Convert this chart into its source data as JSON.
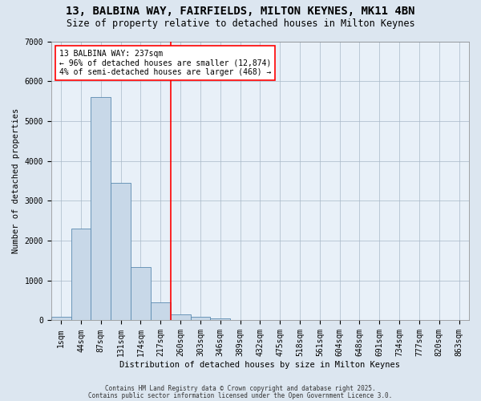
{
  "title_line1": "13, BALBINA WAY, FAIRFIELDS, MILTON KEYNES, MK11 4BN",
  "title_line2": "Size of property relative to detached houses in Milton Keynes",
  "xlabel": "Distribution of detached houses by size in Milton Keynes",
  "ylabel": "Number of detached properties",
  "bar_labels": [
    "1sqm",
    "44sqm",
    "87sqm",
    "131sqm",
    "174sqm",
    "217sqm",
    "260sqm",
    "303sqm",
    "346sqm",
    "389sqm",
    "432sqm",
    "475sqm",
    "518sqm",
    "561sqm",
    "604sqm",
    "648sqm",
    "691sqm",
    "734sqm",
    "777sqm",
    "820sqm",
    "863sqm"
  ],
  "bar_values": [
    80,
    2300,
    5600,
    3450,
    1330,
    450,
    160,
    80,
    45,
    0,
    0,
    0,
    0,
    0,
    0,
    0,
    0,
    0,
    0,
    0,
    0
  ],
  "bar_color": "#c8d8e8",
  "bar_edge_color": "#5a8ab0",
  "vline_x": 5.5,
  "vline_color": "red",
  "annotation_text": "13 BALBINA WAY: 237sqm\n← 96% of detached houses are smaller (12,874)\n4% of semi-detached houses are larger (468) →",
  "annotation_box_color": "white",
  "annotation_box_edge_color": "red",
  "ylim": [
    0,
    7000
  ],
  "yticks": [
    0,
    1000,
    2000,
    3000,
    4000,
    5000,
    6000,
    7000
  ],
  "footer_line1": "Contains HM Land Registry data © Crown copyright and database right 2025.",
  "footer_line2": "Contains public sector information licensed under the Open Government Licence 3.0.",
  "bg_color": "#dce6f0",
  "plot_bg_color": "#e8f0f8",
  "title_fontsize": 10,
  "subtitle_fontsize": 8.5,
  "axis_label_fontsize": 7.5,
  "tick_fontsize": 7,
  "annotation_fontsize": 7,
  "footer_fontsize": 5.5
}
